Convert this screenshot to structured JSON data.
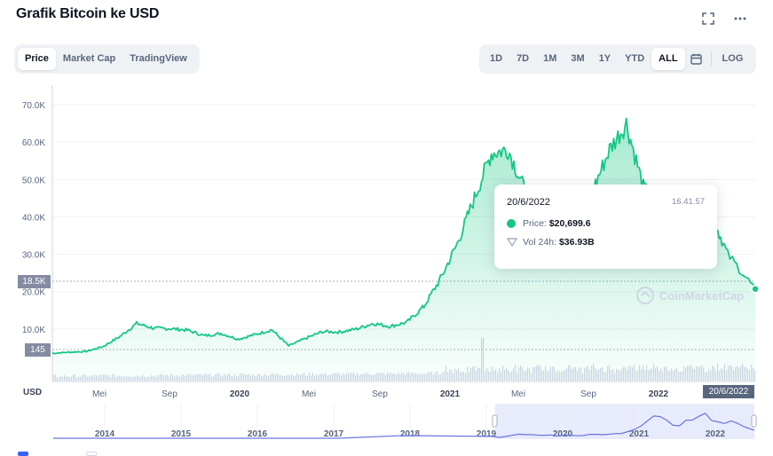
{
  "header": {
    "title": "Grafik Bitcoin ke USD",
    "fullscreen_icon": "fullscreen-icon",
    "more_icon": "more-horizontal-icon"
  },
  "chart_tabs": [
    {
      "label": "Price",
      "active": true
    },
    {
      "label": "Market Cap",
      "active": false
    },
    {
      "label": "TradingView",
      "active": false
    }
  ],
  "ranges": [
    {
      "label": "1D",
      "active": false
    },
    {
      "label": "7D",
      "active": false
    },
    {
      "label": "1M",
      "active": false
    },
    {
      "label": "3M",
      "active": false
    },
    {
      "label": "1Y",
      "active": false
    },
    {
      "label": "YTD",
      "active": false
    },
    {
      "label": "ALL",
      "active": true
    }
  ],
  "calendar_icon": "calendar-icon",
  "log_label": "LOG",
  "currency_label": "USD",
  "current_price_badge": "18.5K",
  "volume_badge": "145",
  "crosshair_date_badge": "20/6/2022",
  "tooltip": {
    "date": "20/6/2022",
    "time": "16.41.57",
    "price_label": "Price:",
    "price_value": "$20,699.6",
    "volume_label": "Vol 24h:",
    "volume_value": "$36.93B"
  },
  "watermark": "CoinMarketCap",
  "colors": {
    "line": "#16c784",
    "fill_top": "#16c784",
    "navigator_line": "#6b74e0",
    "navigator_window": "#e8ebfb",
    "badge": "#858ca2"
  },
  "chart_data": {
    "type": "area",
    "title": "Grafik Bitcoin ke USD",
    "xlabel": "",
    "ylabel": "USD",
    "ylim": [
      0,
      70000
    ],
    "y_ticks": [
      "10.0K",
      "20.0K",
      "30.0K",
      "40.0K",
      "50.0K",
      "60.0K",
      "70.0K"
    ],
    "x_ticks": [
      "Mei",
      "Sep",
      "2020",
      "Mei",
      "Sep",
      "2021",
      "Mei",
      "Sep",
      "2022"
    ],
    "x_range": [
      "2019-01",
      "2022-06-20"
    ],
    "series": [
      {
        "name": "Price",
        "x": [
          "2019-01",
          "2019-02",
          "2019-03",
          "2019-04",
          "2019-05",
          "2019-06",
          "2019-07",
          "2019-08",
          "2019-09",
          "2019-10",
          "2019-11",
          "2019-12",
          "2020-01",
          "2020-02",
          "2020-03",
          "2020-04",
          "2020-05",
          "2020-06",
          "2020-07",
          "2020-08",
          "2020-09",
          "2020-10",
          "2020-11",
          "2020-12",
          "2021-01",
          "2021-02",
          "2021-03",
          "2021-04",
          "2021-05",
          "2021-06",
          "2021-07",
          "2021-08",
          "2021-09",
          "2021-10",
          "2021-11",
          "2021-12",
          "2022-01",
          "2022-02",
          "2022-03",
          "2022-04",
          "2022-05",
          "2022-06-20"
        ],
        "values": [
          3500,
          3800,
          4000,
          5300,
          8000,
          11500,
          10200,
          10100,
          9700,
          8200,
          8800,
          7300,
          8500,
          9800,
          5500,
          7500,
          9300,
          9200,
          10000,
          11500,
          10700,
          11800,
          16000,
          23500,
          33000,
          45000,
          57000,
          58000,
          47000,
          35000,
          33000,
          46000,
          47000,
          58000,
          65000,
          48000,
          42000,
          38000,
          44500,
          41000,
          30000,
          20700
        ]
      }
    ],
    "volume_series": {
      "name": "Vol 24h",
      "note_peak_label": "145"
    },
    "navigator": {
      "x_ticks": [
        "2014",
        "2015",
        "2016",
        "2017",
        "2018",
        "2019",
        "2020",
        "2021",
        "2022"
      ]
    },
    "grid": true
  }
}
